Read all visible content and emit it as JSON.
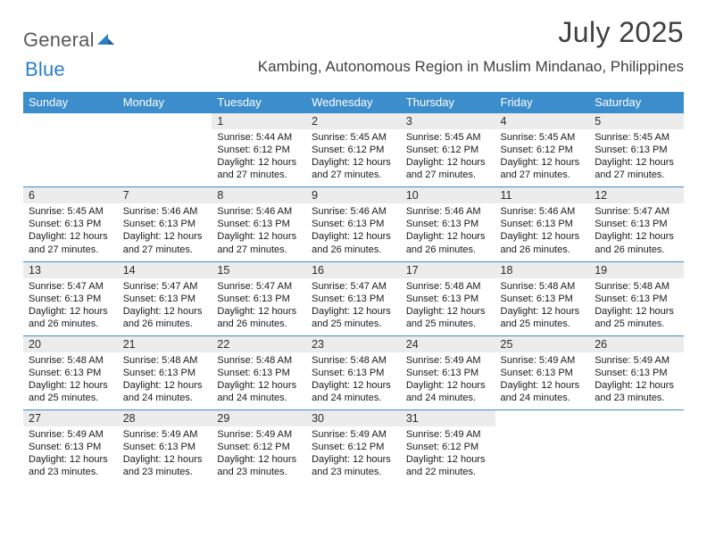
{
  "brand": {
    "word1": "General",
    "word2": "Blue",
    "text_color": "#5a5a5a",
    "accent_color": "#2a7fc9"
  },
  "title": "July 2025",
  "location": "Kambing, Autonomous Region in Muslim Mindanao, Philippines",
  "colors": {
    "header_bg": "#3c8dcc",
    "header_fg": "#ffffff",
    "daynum_bg": "#ececec",
    "rule": "#3c8dcc",
    "page_bg": "#ffffff",
    "text": "#1a1a1a"
  },
  "day_headers": [
    "Sunday",
    "Monday",
    "Tuesday",
    "Wednesday",
    "Thursday",
    "Friday",
    "Saturday"
  ],
  "weeks": [
    {
      "nums": [
        "",
        "",
        "1",
        "2",
        "3",
        "4",
        "5"
      ],
      "cells": [
        null,
        null,
        {
          "sunrise": "Sunrise: 5:44 AM",
          "sunset": "Sunset: 6:12 PM",
          "daylight": "Daylight: 12 hours and 27 minutes."
        },
        {
          "sunrise": "Sunrise: 5:45 AM",
          "sunset": "Sunset: 6:12 PM",
          "daylight": "Daylight: 12 hours and 27 minutes."
        },
        {
          "sunrise": "Sunrise: 5:45 AM",
          "sunset": "Sunset: 6:12 PM",
          "daylight": "Daylight: 12 hours and 27 minutes."
        },
        {
          "sunrise": "Sunrise: 5:45 AM",
          "sunset": "Sunset: 6:12 PM",
          "daylight": "Daylight: 12 hours and 27 minutes."
        },
        {
          "sunrise": "Sunrise: 5:45 AM",
          "sunset": "Sunset: 6:13 PM",
          "daylight": "Daylight: 12 hours and 27 minutes."
        }
      ]
    },
    {
      "nums": [
        "6",
        "7",
        "8",
        "9",
        "10",
        "11",
        "12"
      ],
      "cells": [
        {
          "sunrise": "Sunrise: 5:45 AM",
          "sunset": "Sunset: 6:13 PM",
          "daylight": "Daylight: 12 hours and 27 minutes."
        },
        {
          "sunrise": "Sunrise: 5:46 AM",
          "sunset": "Sunset: 6:13 PM",
          "daylight": "Daylight: 12 hours and 27 minutes."
        },
        {
          "sunrise": "Sunrise: 5:46 AM",
          "sunset": "Sunset: 6:13 PM",
          "daylight": "Daylight: 12 hours and 27 minutes."
        },
        {
          "sunrise": "Sunrise: 5:46 AM",
          "sunset": "Sunset: 6:13 PM",
          "daylight": "Daylight: 12 hours and 26 minutes."
        },
        {
          "sunrise": "Sunrise: 5:46 AM",
          "sunset": "Sunset: 6:13 PM",
          "daylight": "Daylight: 12 hours and 26 minutes."
        },
        {
          "sunrise": "Sunrise: 5:46 AM",
          "sunset": "Sunset: 6:13 PM",
          "daylight": "Daylight: 12 hours and 26 minutes."
        },
        {
          "sunrise": "Sunrise: 5:47 AM",
          "sunset": "Sunset: 6:13 PM",
          "daylight": "Daylight: 12 hours and 26 minutes."
        }
      ]
    },
    {
      "nums": [
        "13",
        "14",
        "15",
        "16",
        "17",
        "18",
        "19"
      ],
      "cells": [
        {
          "sunrise": "Sunrise: 5:47 AM",
          "sunset": "Sunset: 6:13 PM",
          "daylight": "Daylight: 12 hours and 26 minutes."
        },
        {
          "sunrise": "Sunrise: 5:47 AM",
          "sunset": "Sunset: 6:13 PM",
          "daylight": "Daylight: 12 hours and 26 minutes."
        },
        {
          "sunrise": "Sunrise: 5:47 AM",
          "sunset": "Sunset: 6:13 PM",
          "daylight": "Daylight: 12 hours and 26 minutes."
        },
        {
          "sunrise": "Sunrise: 5:47 AM",
          "sunset": "Sunset: 6:13 PM",
          "daylight": "Daylight: 12 hours and 25 minutes."
        },
        {
          "sunrise": "Sunrise: 5:48 AM",
          "sunset": "Sunset: 6:13 PM",
          "daylight": "Daylight: 12 hours and 25 minutes."
        },
        {
          "sunrise": "Sunrise: 5:48 AM",
          "sunset": "Sunset: 6:13 PM",
          "daylight": "Daylight: 12 hours and 25 minutes."
        },
        {
          "sunrise": "Sunrise: 5:48 AM",
          "sunset": "Sunset: 6:13 PM",
          "daylight": "Daylight: 12 hours and 25 minutes."
        }
      ]
    },
    {
      "nums": [
        "20",
        "21",
        "22",
        "23",
        "24",
        "25",
        "26"
      ],
      "cells": [
        {
          "sunrise": "Sunrise: 5:48 AM",
          "sunset": "Sunset: 6:13 PM",
          "daylight": "Daylight: 12 hours and 25 minutes."
        },
        {
          "sunrise": "Sunrise: 5:48 AM",
          "sunset": "Sunset: 6:13 PM",
          "daylight": "Daylight: 12 hours and 24 minutes."
        },
        {
          "sunrise": "Sunrise: 5:48 AM",
          "sunset": "Sunset: 6:13 PM",
          "daylight": "Daylight: 12 hours and 24 minutes."
        },
        {
          "sunrise": "Sunrise: 5:48 AM",
          "sunset": "Sunset: 6:13 PM",
          "daylight": "Daylight: 12 hours and 24 minutes."
        },
        {
          "sunrise": "Sunrise: 5:49 AM",
          "sunset": "Sunset: 6:13 PM",
          "daylight": "Daylight: 12 hours and 24 minutes."
        },
        {
          "sunrise": "Sunrise: 5:49 AM",
          "sunset": "Sunset: 6:13 PM",
          "daylight": "Daylight: 12 hours and 24 minutes."
        },
        {
          "sunrise": "Sunrise: 5:49 AM",
          "sunset": "Sunset: 6:13 PM",
          "daylight": "Daylight: 12 hours and 23 minutes."
        }
      ]
    },
    {
      "nums": [
        "27",
        "28",
        "29",
        "30",
        "31",
        "",
        ""
      ],
      "cells": [
        {
          "sunrise": "Sunrise: 5:49 AM",
          "sunset": "Sunset: 6:13 PM",
          "daylight": "Daylight: 12 hours and 23 minutes."
        },
        {
          "sunrise": "Sunrise: 5:49 AM",
          "sunset": "Sunset: 6:13 PM",
          "daylight": "Daylight: 12 hours and 23 minutes."
        },
        {
          "sunrise": "Sunrise: 5:49 AM",
          "sunset": "Sunset: 6:12 PM",
          "daylight": "Daylight: 12 hours and 23 minutes."
        },
        {
          "sunrise": "Sunrise: 5:49 AM",
          "sunset": "Sunset: 6:12 PM",
          "daylight": "Daylight: 12 hours and 23 minutes."
        },
        {
          "sunrise": "Sunrise: 5:49 AM",
          "sunset": "Sunset: 6:12 PM",
          "daylight": "Daylight: 12 hours and 22 minutes."
        },
        null,
        null
      ]
    }
  ]
}
